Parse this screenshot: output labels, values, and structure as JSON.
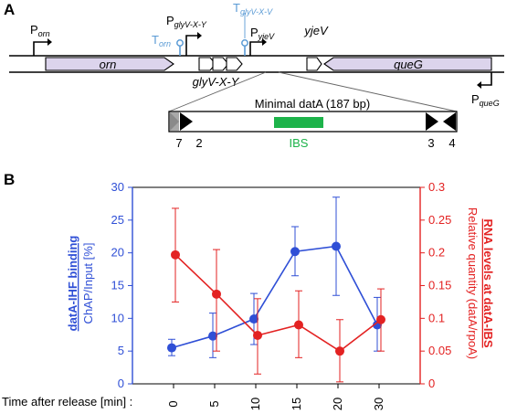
{
  "panel_a": {
    "label": "A",
    "genes": {
      "orn": "orn",
      "glyV": "glyV-X-Y",
      "yjeV": "yjeV",
      "queG": "queG"
    },
    "promoters": {
      "P_orn_main": "P",
      "P_orn_sub": "orn",
      "P_glyV_main": "P",
      "P_glyV_sub": "glyV-X-Y",
      "P_yjeV_main": "P",
      "P_yjeV_sub": "yjeV",
      "P_queG_main": "P",
      "P_queG_sub": "queG"
    },
    "terminators": {
      "T_orn_main": "T",
      "T_orn_sub": "orn",
      "T_glyV_main": "T",
      "T_glyV_sub": "glyV-X-V"
    },
    "minimal_datA": {
      "title": "Minimal datA (187 bp)",
      "ibs_label": "IBS",
      "sites": [
        "7",
        "2",
        "3",
        "4"
      ]
    },
    "colors": {
      "terminator": "#5b9bd5",
      "ibs": "#1db34a",
      "gene_fill": "#dcd4ec"
    }
  },
  "panel_b": {
    "label": "B",
    "left_axis_title_line1": "datA-IHF binding",
    "left_axis_title_line2": "ChAP/Input [%]",
    "right_axis_title_line1": "RNA levels at datA-IBS",
    "right_axis_title_line2": "Relative quantity (datA/rpoA)",
    "x_prefix": "Time after release [min] :",
    "left_ticks": [
      "30",
      "25",
      "20",
      "15",
      "10",
      "5",
      "0"
    ],
    "right_ticks": [
      "0.3",
      "0.25",
      "0.2",
      "0.15",
      "0.1",
      "0.05",
      "0"
    ],
    "colors": {
      "blue": "#2f4fd6",
      "red": "#e32222"
    }
  },
  "chart_data": {
    "type": "line",
    "categories": [
      "0",
      "5",
      "10",
      "15",
      "20",
      "30"
    ],
    "ylim_left": [
      0,
      30
    ],
    "ylim_right": [
      0,
      0.3
    ],
    "xlabel": "Time after release [min] :",
    "series": [
      {
        "name": "datA-IHF binding ChAP/Input [%]",
        "axis": "left",
        "color": "#2f4fd6",
        "values": [
          5.5,
          7.3,
          9.9,
          20.2,
          21.0,
          9.0
        ],
        "err_low": [
          4.3,
          4.0,
          6.0,
          16.5,
          13.5,
          5.0
        ],
        "err_high": [
          6.8,
          10.8,
          13.8,
          24.0,
          28.5,
          13.2
        ]
      },
      {
        "name": "RNA levels at datA-IBS Relative quantity (datA/rpoA)",
        "axis": "right",
        "color": "#e32222",
        "values": [
          0.197,
          0.137,
          0.074,
          0.09,
          0.05,
          0.098
        ],
        "err_low": [
          0.125,
          0.05,
          0.015,
          0.04,
          0.003,
          0.05
        ],
        "err_high": [
          0.268,
          0.205,
          0.13,
          0.142,
          0.098,
          0.145
        ]
      }
    ]
  }
}
